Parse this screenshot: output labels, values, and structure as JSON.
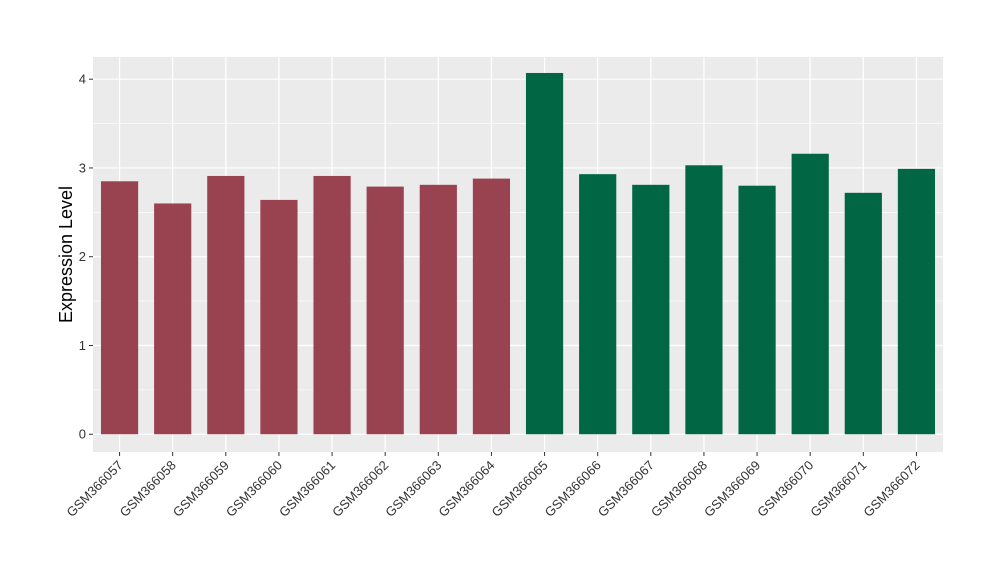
{
  "chart_data": {
    "type": "bar",
    "ylabel": "Expression Level",
    "xlabel": "",
    "ylim": [
      -0.2,
      4.25
    ],
    "yticks": [
      0,
      1,
      2,
      3,
      4
    ],
    "grid": true,
    "categories": [
      "GSM366057",
      "GSM366058",
      "GSM366059",
      "GSM366060",
      "GSM366061",
      "GSM366062",
      "GSM366063",
      "GSM366064",
      "GSM366065",
      "GSM366066",
      "GSM366067",
      "GSM366068",
      "GSM366069",
      "GSM366070",
      "GSM366071",
      "GSM366072"
    ],
    "values": [
      2.85,
      2.6,
      2.91,
      2.64,
      2.91,
      2.79,
      2.81,
      2.88,
      4.07,
      2.93,
      2.81,
      3.03,
      2.8,
      3.16,
      2.72,
      2.99
    ],
    "bar_colors": [
      "#9a4350",
      "#9a4350",
      "#9a4350",
      "#9a4350",
      "#9a4350",
      "#9a4350",
      "#9a4350",
      "#9a4350",
      "#006644",
      "#006644",
      "#006644",
      "#006644",
      "#006644",
      "#006644",
      "#006644",
      "#006644"
    ],
    "panel_background": "#ebebeb",
    "grid_color": "#ffffff"
  }
}
